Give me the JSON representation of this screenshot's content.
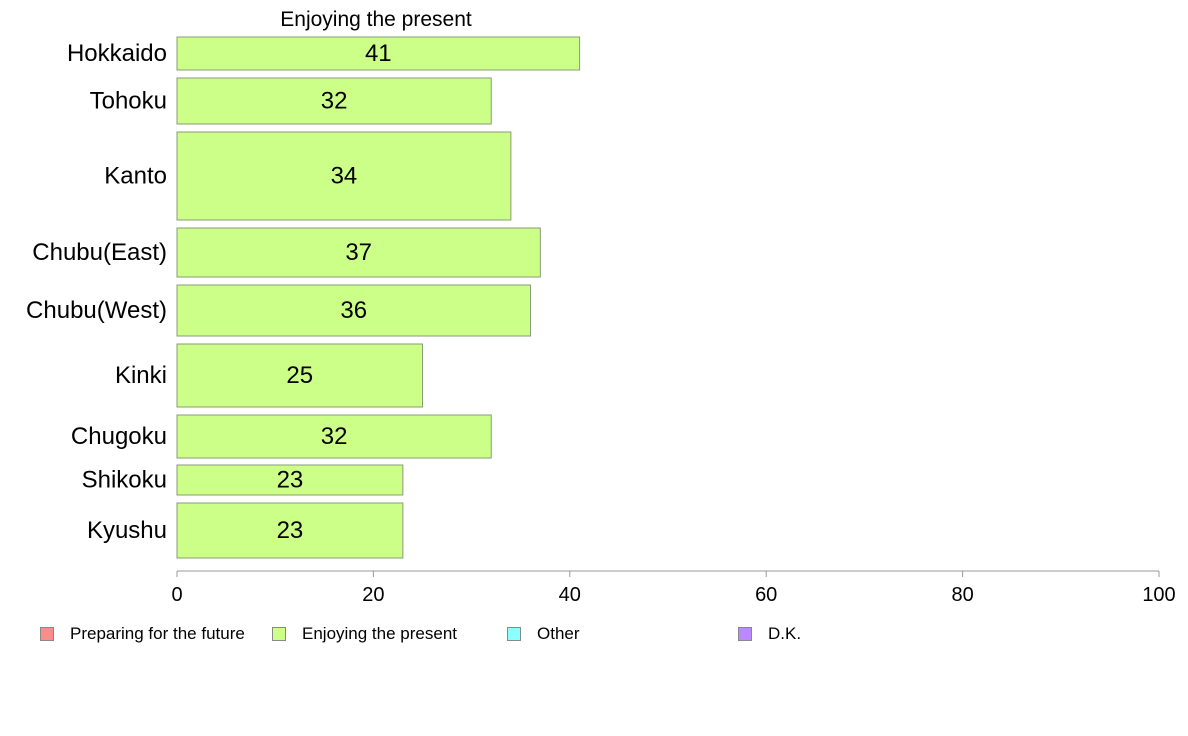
{
  "chart_data": {
    "type": "bar",
    "orientation": "horizontal",
    "title": "Enjoying the present",
    "categories": [
      "Hokkaido",
      "Tohoku",
      "Kanto",
      "Chubu(East)",
      "Chubu(West)",
      "Kinki",
      "Chugoku",
      "Shikoku",
      "Kyushu"
    ],
    "series": [
      {
        "name": "Enjoying the present",
        "values": [
          41,
          32,
          34,
          37,
          36,
          25,
          32,
          23,
          23
        ],
        "color": "#ccff88"
      }
    ],
    "data_labels": [
      "41",
      "32",
      "34",
      "37",
      "36",
      "25",
      "32",
      "23",
      "23"
    ],
    "xlim": [
      0,
      100
    ],
    "x_ticks": [
      0,
      20,
      40,
      60,
      80,
      100
    ],
    "grid": false,
    "legend_position": "bottom",
    "legend": [
      {
        "label": "Preparing for the future",
        "color": "#ff8c8c"
      },
      {
        "label": "Enjoying the present",
        "color": "#ccff88"
      },
      {
        "label": "Other",
        "color": "#8cffff"
      },
      {
        "label": "D.K.",
        "color": "#bb88ff"
      }
    ]
  }
}
